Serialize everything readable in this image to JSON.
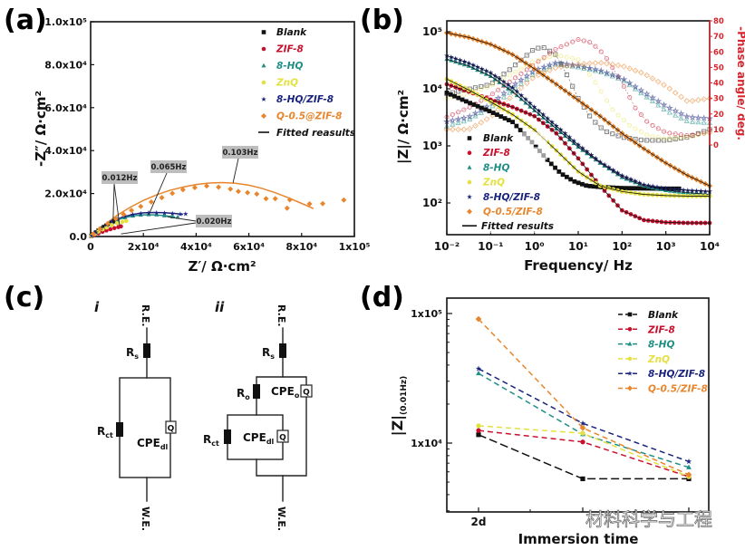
{
  "panels": {
    "a": "(a)",
    "b": "(b)",
    "c": "(c)",
    "d": "(d)"
  },
  "series_colors": {
    "Blank": "#111111",
    "ZIF-8": "#c8102e",
    "8-HQ": "#1f8f86",
    "ZnQ": "#e4e040",
    "8-HQ/ZIF-8": "#1a237e",
    "Q-0.5": "#e8862e"
  },
  "phase_axis_color": "#d9262e",
  "chart_data": [
    {
      "id": "a",
      "type": "scatter",
      "title": "",
      "xlabel": "Z′/ Ω·cm²",
      "ylabel": "-Z″/ Ω·cm²",
      "xlim": [
        0,
        100000
      ],
      "ylim": [
        0,
        100000
      ],
      "xticks": [
        0,
        20000,
        40000,
        60000,
        80000,
        100000
      ],
      "xtick_labels": [
        "0",
        "2x10⁴",
        "4x10⁴",
        "6x10⁴",
        "8x10⁴",
        "1x10⁵"
      ],
      "yticks": [
        0,
        20000,
        40000,
        60000,
        80000,
        100000
      ],
      "ytick_labels": [
        "0.0",
        "2.0x10⁴",
        "4.0x10⁴",
        "6.0x10⁴",
        "8.0x10⁴",
        "1.0x10⁵"
      ],
      "legend_position": "top-right",
      "legend": [
        "Blank",
        "ZIF-8",
        "8-HQ",
        "ZnQ",
        "8-HQ/ZIF-8",
        "Q-0.5@ZIF-8",
        "Fitted reasults"
      ],
      "series": [
        {
          "name": "Blank",
          "marker": "square",
          "color_key": "Blank",
          "x": [
            300,
            1000,
            2000,
            3000,
            4000,
            5000,
            6000,
            7000,
            8000,
            9000,
            10000
          ],
          "y": [
            300,
            1000,
            1900,
            2800,
            3600,
            4400,
            5100,
            5800,
            6400,
            7000,
            7600
          ]
        },
        {
          "name": "ZIF-8",
          "marker": "circle",
          "color_key": "ZIF-8",
          "x": [
            300,
            1500,
            3000,
            4500,
            6000,
            7500,
            9000,
            10500,
            11500
          ],
          "y": [
            200,
            800,
            1500,
            2200,
            2800,
            3400,
            3900,
            4400,
            4700
          ]
        },
        {
          "name": "8-HQ",
          "marker": "triangle",
          "color_key": "8-HQ",
          "x": [
            400,
            2000,
            4000,
            6000,
            8000,
            10000,
            13000,
            16000,
            19000,
            22000,
            25000,
            28000,
            31000,
            33000
          ],
          "y": [
            400,
            1800,
            3600,
            5200,
            6600,
            7700,
            8800,
            9600,
            10000,
            10200,
            10100,
            9700,
            9200,
            9000
          ]
        },
        {
          "name": "ZnQ",
          "marker": "circle",
          "color_key": "ZnQ",
          "x": [
            300,
            1500,
            3000,
            4500,
            6000,
            8000,
            10000,
            12000,
            13500
          ],
          "y": [
            300,
            1200,
            2300,
            3300,
            4200,
            5300,
            6200,
            6800,
            7200
          ]
        },
        {
          "name": "8-HQ/ZIF-8",
          "marker": "star",
          "color_key": "8-HQ/ZIF-8",
          "x": [
            400,
            2000,
            4000,
            6000,
            8000,
            10000,
            13000,
            16000,
            19000,
            22000,
            25000,
            28000,
            31000,
            34000,
            36000
          ],
          "y": [
            400,
            1900,
            3800,
            5500,
            7000,
            8200,
            9400,
            10200,
            10700,
            11000,
            11000,
            10900,
            10700,
            10400,
            10500
          ]
        },
        {
          "name": "Q-0.5@ZIF-8",
          "marker": "diamond",
          "color_key": "Q-0.5",
          "x": [
            1000,
            3500,
            6500,
            9500,
            12500,
            15500,
            19000,
            23000,
            27000,
            31000,
            35000,
            39500,
            44000,
            48500,
            53000,
            56000,
            59500,
            63000,
            66500,
            70000,
            74500,
            75500,
            83000,
            88000,
            96000
          ],
          "y": [
            1200,
            3600,
            6000,
            8200,
            10300,
            12200,
            14000,
            16100,
            18100,
            20100,
            21800,
            22800,
            23500,
            23000,
            22100,
            21000,
            20400,
            19800,
            17600,
            17600,
            13200,
            17100,
            15200,
            15300,
            17000
          ]
        }
      ],
      "fits": [
        {
          "name": "Q-0.5@ZIF-8 fit",
          "color_key": "Q-0.5",
          "x": [
            0,
            5000,
            10000,
            15000,
            20000,
            25000,
            30000,
            35000,
            40000,
            45000,
            50000,
            55000,
            60000,
            65000,
            70000,
            75000,
            80000,
            84500
          ],
          "y": [
            0,
            5200,
            9800,
            13600,
            16800,
            19400,
            21500,
            23000,
            24200,
            24900,
            25100,
            24800,
            23900,
            22400,
            20400,
            18000,
            15400,
            13000
          ]
        },
        {
          "name": "8-HQ/ZIF-8 fit",
          "color_key": "8-HQ/ZIF-8",
          "x": [
            0,
            4000,
            8000,
            12000,
            16000,
            20000,
            24000,
            28000,
            32000,
            35000
          ],
          "y": [
            0,
            3800,
            7000,
            9000,
            10300,
            11000,
            11200,
            11100,
            10700,
            10300
          ]
        },
        {
          "name": "8-HQ fit",
          "color_key": "8-HQ",
          "x": [
            0,
            4000,
            8000,
            12000,
            16000,
            20000,
            24000,
            28000,
            32000
          ],
          "y": [
            0,
            3600,
            6600,
            8500,
            9600,
            10100,
            10100,
            9700,
            9100
          ]
        }
      ],
      "annotations": [
        {
          "text": "0.103Hz",
          "point": [
            54000,
            25000
          ]
        },
        {
          "text": "0.065Hz",
          "point": [
            22000,
            10000
          ]
        },
        {
          "text": "0.012Hz",
          "point": [
            8500,
            6500
          ]
        },
        {
          "text": "0.012Hz",
          "point": [
            11000,
            5000
          ]
        },
        {
          "text": "0.020Hz",
          "point": [
            29000,
            9200
          ]
        },
        {
          "text": "0.020Hz",
          "point": [
            11500,
            1200
          ]
        }
      ]
    },
    {
      "id": "b",
      "type": "scatter",
      "title": "",
      "xlabel": "Frequency/ Hz",
      "ylabel": "|Z|/ Ω·cm²",
      "y2label": "-Phase angle/ deg.",
      "xscale": "log",
      "yscale": "log",
      "xlim": [
        0.01,
        10000
      ],
      "ylim": [
        28,
        155000
      ],
      "y2lim": [
        0,
        80
      ],
      "xtick_labels": [
        "10⁻²",
        "10⁻¹",
        "10⁰",
        "10¹",
        "10²",
        "10³",
        "10⁴"
      ],
      "ytick_labels": [
        "10²",
        "10³",
        "10⁴",
        "10⁵"
      ],
      "y2tick_labels": [
        "0",
        "10",
        "20",
        "30",
        "40",
        "50",
        "60",
        "70",
        "80"
      ],
      "legend_position": "bottom-left",
      "legend": [
        "Blank",
        "ZIF-8",
        "8-HQ",
        "ZnQ",
        "8-HQ/ZIF-8",
        "Q-0.5/ZIF-8",
        "Fitted results"
      ],
      "modulus_series": [
        {
          "name": "Blank",
          "marker": "square",
          "color_key": "Blank",
          "logf": [
            -2,
            -1.5,
            -1,
            -0.5,
            0,
            0.3,
            0.6,
            0.9,
            1.2,
            1.5,
            2,
            3,
            3.3
          ],
          "logZ": [
            3.93,
            3.76,
            3.6,
            3.42,
            3.02,
            2.75,
            2.52,
            2.38,
            2.3,
            2.28,
            2.26,
            2.25,
            2.25
          ]
        },
        {
          "name": "ZIF-8",
          "marker": "circle",
          "color_key": "ZIF-8",
          "logf": [
            -2,
            -1.5,
            -1,
            -0.5,
            0,
            0.5,
            1,
            1.5,
            2,
            2.5,
            3,
            3.5,
            4
          ],
          "logZ": [
            4.08,
            3.95,
            3.81,
            3.68,
            3.52,
            3.22,
            2.78,
            2.3,
            1.87,
            1.7,
            1.66,
            1.65,
            1.65
          ]
        },
        {
          "name": "8-HQ",
          "marker": "triangle",
          "color_key": "8-HQ",
          "logf": [
            -2,
            -1.5,
            -1,
            -0.5,
            0,
            0.5,
            1,
            1.5,
            2,
            2.5,
            3,
            3.5,
            4
          ],
          "logZ": [
            4.52,
            4.4,
            4.22,
            3.95,
            3.62,
            3.3,
            2.98,
            2.7,
            2.45,
            2.3,
            2.22,
            2.18,
            2.15
          ]
        },
        {
          "name": "ZnQ",
          "marker": "circle",
          "color_key": "ZnQ",
          "logf": [
            -2,
            -1.5,
            -1,
            -0.5,
            0,
            0.5,
            1,
            1.5,
            2,
            2.5,
            3,
            3.5,
            4
          ],
          "logZ": [
            4.17,
            3.98,
            3.77,
            3.55,
            3.28,
            2.92,
            2.55,
            2.3,
            2.2,
            2.15,
            2.13,
            2.12,
            2.12
          ]
        },
        {
          "name": "8-HQ/ZIF-8",
          "marker": "star",
          "color_key": "8-HQ/ZIF-8",
          "logf": [
            -2,
            -1.5,
            -1,
            -0.5,
            0,
            0.5,
            1,
            1.5,
            2,
            2.5,
            3,
            3.5,
            4
          ],
          "logZ": [
            4.58,
            4.45,
            4.28,
            4.02,
            3.68,
            3.35,
            3.02,
            2.72,
            2.48,
            2.32,
            2.25,
            2.22,
            2.2
          ]
        },
        {
          "name": "Q-0.5/ZIF-8",
          "marker": "diamond",
          "color_key": "Q-0.5",
          "logf": [
            -2,
            -1.5,
            -1,
            -0.5,
            0,
            0.5,
            1,
            1.5,
            2,
            2.5,
            3,
            3.5,
            4
          ],
          "logZ": [
            4.98,
            4.9,
            4.78,
            4.6,
            4.35,
            4.08,
            3.8,
            3.52,
            3.22,
            2.95,
            2.7,
            2.48,
            2.3
          ]
        }
      ],
      "phase_series": [
        {
          "name": "Blank",
          "marker": "open-square",
          "color_key": "Blank",
          "logf": [
            -2,
            -1.5,
            -1,
            -0.5,
            0,
            0.2,
            0.5,
            0.8,
            1,
            1.3,
            1.6,
            2,
            2.5,
            3,
            3.5,
            4
          ],
          "phase": [
            33,
            36,
            39,
            50,
            62,
            63,
            58,
            42,
            30,
            17,
            9,
            5,
            3,
            3,
            5,
            10
          ]
        },
        {
          "name": "ZIF-8",
          "marker": "open-circle",
          "color_key": "ZIF-8",
          "logf": [
            -2,
            -1.5,
            -1,
            -0.5,
            0,
            0.5,
            1,
            1.3,
            1.6,
            2,
            2.3,
            2.6,
            3,
            3.5,
            4
          ],
          "phase": [
            18,
            24,
            32,
            42,
            52,
            62,
            68,
            66,
            58,
            40,
            24,
            14,
            8,
            6,
            8
          ]
        },
        {
          "name": "8-HQ",
          "marker": "open-triangle",
          "color_key": "8-HQ",
          "logf": [
            -2,
            -1.5,
            -1,
            -0.5,
            0,
            0.5,
            1,
            1.5,
            2,
            2.5,
            3,
            3.5,
            4
          ],
          "phase": [
            12,
            16,
            24,
            35,
            46,
            52,
            50,
            47,
            42,
            32,
            22,
            15,
            14
          ]
        },
        {
          "name": "ZnQ",
          "marker": "open-circle",
          "color_key": "ZnQ",
          "logf": [
            -2,
            -1.5,
            -1,
            -0.5,
            0,
            0.5,
            1,
            1.4,
            1.8,
            2.2,
            2.6,
            3,
            3.5,
            4
          ],
          "phase": [
            30,
            33,
            38,
            46,
            54,
            58,
            55,
            40,
            22,
            12,
            6,
            4,
            5,
            8
          ]
        },
        {
          "name": "8-HQ/ZIF-8",
          "marker": "open-star",
          "color_key": "8-HQ/ZIF-8",
          "logf": [
            -2,
            -1.5,
            -1,
            -0.5,
            0,
            0.5,
            1,
            1.5,
            2,
            2.5,
            3,
            3.5,
            4
          ],
          "phase": [
            15,
            18,
            26,
            38,
            48,
            53,
            51,
            48,
            43,
            34,
            25,
            18,
            17
          ]
        },
        {
          "name": "Q-0.5/ZIF-8",
          "marker": "open-diamond",
          "color_key": "Q-0.5",
          "logf": [
            -2,
            -1.5,
            -1,
            -0.5,
            0,
            0.5,
            1,
            1.5,
            2,
            2.5,
            3,
            3.5,
            4
          ],
          "phase": [
            10,
            10,
            18,
            32,
            44,
            50,
            52,
            53,
            51,
            46,
            38,
            28,
            30
          ]
        }
      ]
    },
    {
      "id": "d",
      "type": "line",
      "title": "",
      "xlabel": "Immersion time",
      "ylabel": "|Z|",
      "ylabel_sub": "(0.01Hz)",
      "yscale": "log",
      "ylim": [
        2950,
        132000
      ],
      "categories": [
        "2d",
        "",
        ""
      ],
      "visible_x_labels": [
        "2d"
      ],
      "ytick_labels": [
        "1x10⁴",
        "1x10⁵"
      ],
      "legend_position": "top-right",
      "legend": [
        "Blank",
        "ZIF-8",
        "8-HQ",
        "ZnQ",
        "8-HQ/ZIF-8",
        "Q-0.5/ZIF-8"
      ],
      "series": [
        {
          "name": "Blank",
          "marker": "square",
          "color_key": "Blank",
          "values": [
            11600,
            5300,
            5300
          ]
        },
        {
          "name": "ZIF-8",
          "marker": "circle",
          "color_key": "ZIF-8",
          "values": [
            12500,
            10200,
            5500
          ]
        },
        {
          "name": "8-HQ",
          "marker": "triangle",
          "color_key": "8-HQ",
          "values": [
            34500,
            11700,
            6500
          ]
        },
        {
          "name": "ZnQ",
          "marker": "circle",
          "color_key": "ZnQ",
          "values": [
            13600,
            11900,
            5500
          ]
        },
        {
          "name": "8-HQ/ZIF-8",
          "marker": "star",
          "color_key": "8-HQ/ZIF-8",
          "values": [
            37500,
            14200,
            7200
          ]
        },
        {
          "name": "Q-0.5/ZIF-8",
          "marker": "diamond",
          "color_key": "Q-0.5",
          "values": [
            90600,
            13100,
            5700
          ]
        }
      ]
    }
  ],
  "circuits": {
    "i": {
      "label": "i",
      "re": "R.E.",
      "we": "W.E.",
      "rs": "R",
      "rs_sub": "s",
      "rct": "R",
      "rct_sub": "ct",
      "cpe": "CPE",
      "cpe_sub": "dl",
      "q": "Q"
    },
    "ii": {
      "label": "ii",
      "re": "R.E.",
      "we": "W.E.",
      "rs": "R",
      "rs_sub": "s",
      "ro": "R",
      "ro_sub": "o",
      "cpeo": "CPE",
      "cpeo_sub": "o",
      "rct": "R",
      "rct_sub": "ct",
      "cpe": "CPE",
      "cpe_sub": "dl",
      "q": "Q"
    }
  },
  "watermark": "材料科学与工程"
}
